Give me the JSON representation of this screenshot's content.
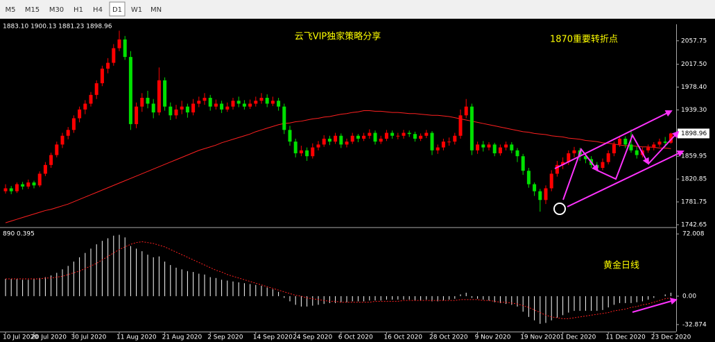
{
  "toolbar": {
    "timeframes": [
      "M5",
      "M15",
      "M30",
      "H1",
      "H4",
      "D1",
      "W1",
      "MN"
    ],
    "active": "D1"
  },
  "chart_data": [
    {
      "type": "candlestick",
      "info": "1883.10 1900.13 1881.23 1898.96",
      "annotations": [
        "云飞VIP独家策略分享",
        "1870重要转折点"
      ],
      "up_color": "#ff0000",
      "down_color": "#00e000",
      "ylim": [
        1739,
        2086
      ],
      "yticks": [
        2057.75,
        {
          "value": 2017.5,
          "label": "2017.50"
        },
        {
          "value": 1978.4,
          "label": "1978.40"
        },
        {
          "value": 1939.3,
          "label": "1939.30"
        },
        1859.95,
        1820.85,
        1781.75,
        1742.65
      ],
      "xticks": [
        {
          "value": 0,
          "label": "10 Jul 2020"
        },
        {
          "value": 5,
          "label": "20 Jul 2020"
        },
        {
          "value": 12,
          "label": "30 Jul 2020"
        },
        {
          "value": 20,
          "label": "11 Aug 2020"
        },
        {
          "value": 28,
          "label": "21 Aug 2020"
        },
        {
          "value": 36,
          "label": "2 Sep 2020"
        },
        {
          "value": 44,
          "label": "14 Sep 2020"
        },
        {
          "value": 51,
          "label": "24 Sep 2020"
        },
        {
          "value": 59,
          "label": "6 Oct 2020"
        },
        {
          "value": 67,
          "label": "16 Oct 2020"
        },
        {
          "value": 75,
          "label": "28 Oct 2020"
        },
        {
          "value": 83,
          "label": "9 Nov 2020"
        },
        {
          "value": 91,
          "label": "19 Nov 2020"
        },
        {
          "value": 98,
          "label": "1 Dec 2020"
        },
        {
          "value": 106,
          "label": "11 Dec 2020"
        },
        {
          "value": 114,
          "label": "23 Dec 2020"
        }
      ],
      "ohlc": [
        [
          1800,
          1812,
          1796,
          1805
        ],
        [
          1805,
          1809,
          1795,
          1800
        ],
        [
          1800,
          1815,
          1797,
          1812
        ],
        [
          1812,
          1816,
          1803,
          1808
        ],
        [
          1808,
          1820,
          1804,
          1815
        ],
        [
          1815,
          1818,
          1805,
          1810
        ],
        [
          1810,
          1834,
          1807,
          1830
        ],
        [
          1830,
          1850,
          1826,
          1845
        ],
        [
          1845,
          1866,
          1840,
          1862
        ],
        [
          1862,
          1885,
          1858,
          1880
        ],
        [
          1880,
          1900,
          1874,
          1895
        ],
        [
          1895,
          1910,
          1889,
          1905
        ],
        [
          1905,
          1930,
          1900,
          1925
        ],
        [
          1925,
          1945,
          1918,
          1940
        ],
        [
          1940,
          1956,
          1932,
          1950
        ],
        [
          1950,
          1970,
          1945,
          1965
        ],
        [
          1965,
          1990,
          1958,
          1985
        ],
        [
          1985,
          2015,
          1980,
          2010
        ],
        [
          2010,
          2028,
          2002,
          2020
        ],
        [
          2020,
          2052,
          2015,
          2045
        ],
        [
          2045,
          2075,
          2040,
          2060
        ],
        [
          2060,
          2066,
          2025,
          2030
        ],
        [
          2030,
          2040,
          1905,
          1915
        ],
        [
          1915,
          1952,
          1908,
          1945
        ],
        [
          1945,
          1968,
          1936,
          1960
        ],
        [
          1960,
          1972,
          1942,
          1950
        ],
        [
          1950,
          1958,
          1925,
          1935
        ],
        [
          1935,
          2012,
          1930,
          1990
        ],
        [
          1990,
          1995,
          1938,
          1945
        ],
        [
          1945,
          1952,
          1922,
          1930
        ],
        [
          1930,
          1948,
          1924,
          1940
        ],
        [
          1940,
          1955,
          1932,
          1945
        ],
        [
          1945,
          1950,
          1926,
          1935
        ],
        [
          1935,
          1958,
          1930,
          1950
        ],
        [
          1950,
          1962,
          1944,
          1955
        ],
        [
          1955,
          1968,
          1948,
          1960
        ],
        [
          1960,
          1965,
          1938,
          1945
        ],
        [
          1945,
          1957,
          1940,
          1950
        ],
        [
          1950,
          1955,
          1934,
          1940
        ],
        [
          1940,
          1952,
          1936,
          1945
        ],
        [
          1945,
          1960,
          1940,
          1955
        ],
        [
          1955,
          1962,
          1944,
          1950
        ],
        [
          1950,
          1956,
          1940,
          1945
        ],
        [
          1945,
          1957,
          1941,
          1950
        ],
        [
          1950,
          1962,
          1945,
          1955
        ],
        [
          1955,
          1968,
          1950,
          1960
        ],
        [
          1960,
          1966,
          1944,
          1950
        ],
        [
          1950,
          1962,
          1946,
          1955
        ],
        [
          1955,
          1960,
          1938,
          1945
        ],
        [
          1945,
          1950,
          1898,
          1905
        ],
        [
          1905,
          1912,
          1878,
          1885
        ],
        [
          1885,
          1890,
          1858,
          1865
        ],
        [
          1865,
          1878,
          1860,
          1870
        ],
        [
          1870,
          1875,
          1852,
          1860
        ],
        [
          1860,
          1882,
          1856,
          1875
        ],
        [
          1875,
          1886,
          1870,
          1880
        ],
        [
          1880,
          1896,
          1876,
          1890
        ],
        [
          1890,
          1895,
          1879,
          1885
        ],
        [
          1885,
          1900,
          1881,
          1895
        ],
        [
          1895,
          1899,
          1874,
          1880
        ],
        [
          1880,
          1890,
          1875,
          1885
        ],
        [
          1885,
          1900,
          1881,
          1895
        ],
        [
          1895,
          1898,
          1884,
          1890
        ],
        [
          1890,
          1900,
          1886,
          1895
        ],
        [
          1895,
          1906,
          1890,
          1900
        ],
        [
          1900,
          1904,
          1880,
          1885
        ],
        [
          1885,
          1895,
          1881,
          1890
        ],
        [
          1890,
          1905,
          1886,
          1900
        ],
        [
          1900,
          1904,
          1890,
          1895
        ],
        [
          1895,
          1900,
          1889,
          1895
        ],
        [
          1895,
          1905,
          1890,
          1900
        ],
        [
          1900,
          1904,
          1893,
          1898
        ],
        [
          1898,
          1902,
          1885,
          1890
        ],
        [
          1890,
          1899,
          1886,
          1895
        ],
        [
          1895,
          1905,
          1891,
          1900
        ],
        [
          1900,
          1903,
          1862,
          1870
        ],
        [
          1870,
          1880,
          1864,
          1875
        ],
        [
          1875,
          1890,
          1870,
          1885
        ],
        [
          1885,
          1892,
          1878,
          1885
        ],
        [
          1885,
          1900,
          1880,
          1895
        ],
        [
          1895,
          1940,
          1890,
          1930
        ],
        [
          1930,
          1958,
          1925,
          1945
        ],
        [
          1945,
          1950,
          1862,
          1870
        ],
        [
          1870,
          1885,
          1864,
          1880
        ],
        [
          1880,
          1886,
          1868,
          1875
        ],
        [
          1875,
          1884,
          1870,
          1880
        ],
        [
          1880,
          1883,
          1860,
          1865
        ],
        [
          1865,
          1880,
          1861,
          1875
        ],
        [
          1875,
          1885,
          1870,
          1880
        ],
        [
          1880,
          1884,
          1865,
          1870
        ],
        [
          1870,
          1874,
          1850,
          1860
        ],
        [
          1860,
          1864,
          1828,
          1835
        ],
        [
          1835,
          1840,
          1806,
          1812
        ],
        [
          1812,
          1815,
          1792,
          1800
        ],
        [
          1800,
          1804,
          1765,
          1785
        ],
        [
          1785,
          1810,
          1778,
          1805
        ],
        [
          1805,
          1836,
          1800,
          1830
        ],
        [
          1830,
          1852,
          1825,
          1845
        ],
        [
          1845,
          1858,
          1838,
          1850
        ],
        [
          1850,
          1870,
          1845,
          1865
        ],
        [
          1865,
          1876,
          1858,
          1870
        ],
        [
          1870,
          1874,
          1852,
          1860
        ],
        [
          1860,
          1866,
          1848,
          1855
        ],
        [
          1855,
          1860,
          1840,
          1845
        ],
        [
          1845,
          1850,
          1834,
          1840
        ],
        [
          1840,
          1856,
          1836,
          1850
        ],
        [
          1850,
          1870,
          1846,
          1865
        ],
        [
          1865,
          1885,
          1860,
          1880
        ],
        [
          1880,
          1895,
          1876,
          1890
        ],
        [
          1890,
          1894,
          1874,
          1880
        ],
        [
          1880,
          1906,
          1866,
          1870
        ],
        [
          1870,
          1876,
          1856,
          1862
        ],
        [
          1862,
          1875,
          1858,
          1870
        ],
        [
          1870,
          1880,
          1866,
          1875
        ],
        [
          1875,
          1884,
          1870,
          1880
        ],
        [
          1880,
          1890,
          1876,
          1885
        ],
        [
          1885,
          1893,
          1876,
          1883
        ],
        [
          1883.1,
          1900.13,
          1881.23,
          1898.96
        ]
      ],
      "lines": [
        {
          "color": "#ff2020",
          "values": [
            1746,
            1749,
            1752,
            1755,
            1758,
            1761,
            1764,
            1767,
            1769,
            1772,
            1775,
            1778,
            1782,
            1786,
            1790,
            1794,
            1798,
            1802,
            1806,
            1810,
            1814,
            1818,
            1822,
            1826,
            1830,
            1834,
            1838,
            1842,
            1846,
            1850,
            1854,
            1858,
            1862,
            1866,
            1870,
            1873,
            1876,
            1879,
            1883,
            1886,
            1889,
            1892,
            1895,
            1898,
            1902,
            1905,
            1908,
            1911,
            1914,
            1916,
            1917,
            1919,
            1920,
            1922,
            1924,
            1925,
            1927,
            1928,
            1930,
            1932,
            1933,
            1935,
            1936,
            1938,
            1938,
            1937,
            1937,
            1936,
            1935,
            1935,
            1934,
            1933,
            1933,
            1932,
            1931,
            1930,
            1930,
            1929,
            1928,
            1926,
            1924,
            1922,
            1920,
            1918,
            1916,
            1914,
            1912,
            1910,
            1908,
            1906,
            1904,
            1902,
            1901,
            1899,
            1898,
            1897,
            1895,
            1894,
            1893,
            1891,
            1890,
            1889,
            1887,
            1886,
            1885,
            1883,
            1882,
            1881,
            1879,
            1878,
            1878,
            1877,
            1876,
            1876,
            1875,
            1874,
            1874,
            1873
          ]
        }
      ]
    },
    {
      "type": "macd",
      "label": "890 0.395",
      "annotation": "黄金日线",
      "ylim": [
        -41,
        77
      ],
      "yticks": [
        72.008,
        {
          "value": 0,
          "label": "0.00"
        },
        -32.874
      ],
      "histogram_color": "#ffffff",
      "signal_color": "#ff2020",
      "histogram": [
        20,
        20,
        20,
        19,
        19,
        20,
        21,
        22,
        24,
        27,
        31,
        35,
        40,
        45,
        50,
        55,
        60,
        64,
        67,
        70,
        71,
        68,
        58,
        55,
        52,
        48,
        45,
        46,
        40,
        36,
        33,
        31,
        29,
        28,
        26,
        25,
        22,
        21,
        19,
        18,
        17,
        16,
        15,
        14,
        13,
        12,
        10,
        8,
        5,
        -2,
        -6,
        -10,
        -12,
        -12,
        -11,
        -10,
        -9,
        -8,
        -8,
        -7,
        -7,
        -6,
        -6,
        -6,
        -5,
        -5,
        -5,
        -4,
        -4,
        -4,
        -4,
        -4,
        -5,
        -5,
        -4,
        -6,
        -6,
        -5,
        -4,
        -3,
        2,
        4,
        -2,
        -3,
        -4,
        -5,
        -7,
        -8,
        -9,
        -10,
        -12,
        -18,
        -24,
        -28,
        -32,
        -31,
        -28,
        -25,
        -22,
        -19,
        -17,
        -17,
        -17,
        -17,
        -17,
        -16,
        -13,
        -10,
        -8,
        -8,
        -8,
        -7,
        -6,
        -4,
        -2,
        0,
        2,
        4
      ],
      "signal": [
        20,
        20,
        20,
        20,
        20,
        20,
        20,
        21,
        21,
        22,
        23,
        25,
        27,
        29,
        32,
        35,
        38,
        42,
        46,
        50,
        54,
        57,
        60,
        62,
        63,
        62,
        61,
        59,
        57,
        54,
        51,
        48,
        45,
        42,
        39,
        36,
        33,
        30,
        28,
        25,
        23,
        21,
        19,
        17,
        15,
        13,
        11,
        9,
        7,
        5,
        3,
        1,
        0,
        -2,
        -3,
        -4,
        -5,
        -6,
        -6,
        -7,
        -7,
        -7,
        -7,
        -7,
        -7,
        -6,
        -6,
        -6,
        -6,
        -6,
        -5,
        -5,
        -5,
        -5,
        -5,
        -5,
        -5,
        -5,
        -5,
        -5,
        -4,
        -4,
        -4,
        -4,
        -5,
        -5,
        -6,
        -7,
        -7,
        -8,
        -9,
        -11,
        -13,
        -16,
        -19,
        -22,
        -24,
        -25,
        -26,
        -26,
        -25,
        -24,
        -23,
        -22,
        -21,
        -20,
        -19,
        -17,
        -16,
        -15,
        -13,
        -12,
        -10,
        -9,
        -7,
        -5,
        -3,
        -2
      ]
    }
  ]
}
